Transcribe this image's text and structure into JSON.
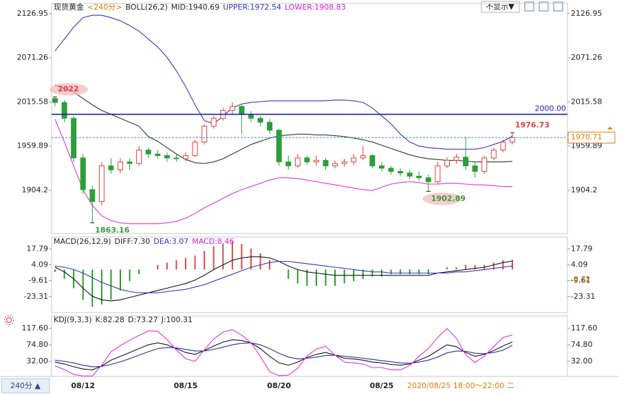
{
  "chart_data": [
    {
      "type": "candlestick",
      "legend": [
        {
          "text": "现货黄金",
          "color": "#222222"
        },
        {
          "text": "<240分>",
          "color": "#e07b00"
        },
        {
          "text": "BOLL(26,2)",
          "color": "#222222"
        },
        {
          "text": "MID:1940.69",
          "color": "#222222"
        },
        {
          "text": "UPPER:1972.54",
          "color": "#3535c0"
        },
        {
          "text": "LOWER:1908.83",
          "color": "#d020d0"
        }
      ],
      "categories": [
        null,
        null,
        null,
        "08/12",
        null,
        null,
        null,
        null,
        null,
        null,
        null,
        null,
        null,
        null,
        "08/15",
        null,
        null,
        null,
        null,
        null,
        null,
        null,
        null,
        null,
        "08/20",
        null,
        null,
        null,
        null,
        null,
        null,
        null,
        null,
        null,
        null,
        "08/25",
        null,
        null,
        null,
        null,
        null,
        null,
        null,
        null,
        null,
        null,
        null,
        null,
        null,
        null
      ],
      "candles": [
        [
          2020,
          2022,
          2010,
          2015
        ],
        [
          2015,
          2018,
          1990,
          1995
        ],
        [
          1995,
          1998,
          1940,
          1945
        ],
        [
          1945,
          1950,
          1900,
          1905
        ],
        [
          1905,
          1910,
          1863.16,
          1890
        ],
        [
          1890,
          1940,
          1885,
          1935
        ],
        [
          1935,
          1945,
          1925,
          1930
        ],
        [
          1930,
          1945,
          1926,
          1940
        ],
        [
          1940,
          1944,
          1930,
          1938
        ],
        [
          1938,
          1960,
          1935,
          1955
        ],
        [
          1955,
          1958,
          1945,
          1950
        ],
        [
          1950,
          1955,
          1944,
          1948
        ],
        [
          1948,
          1952,
          1940,
          1945
        ],
        [
          1945,
          1950,
          1940,
          1944
        ],
        [
          1944,
          1952,
          1941,
          1948
        ],
        [
          1948,
          1968,
          1946,
          1965
        ],
        [
          1965,
          1988,
          1962,
          1985
        ],
        [
          1985,
          1998,
          1982,
          1995
        ],
        [
          1995,
          2008,
          1992,
          2005
        ],
        [
          2005,
          2015.59,
          2000,
          2010
        ],
        [
          2010,
          2012,
          1975,
          2000
        ],
        [
          2000,
          2004,
          1990,
          1995
        ],
        [
          1995,
          1998,
          1985,
          1990
        ],
        [
          1990,
          1994,
          1975,
          1980
        ],
        [
          1980,
          1982,
          1935,
          1940
        ],
        [
          1940,
          1948,
          1930,
          1935
        ],
        [
          1935,
          1950,
          1932,
          1945
        ],
        [
          1945,
          1948,
          1936,
          1940
        ],
        [
          1940,
          1948,
          1935,
          1942
        ],
        [
          1942,
          1945,
          1930,
          1935
        ],
        [
          1935,
          1942,
          1932,
          1938
        ],
        [
          1938,
          1944,
          1934,
          1940
        ],
        [
          1940,
          1950,
          1936,
          1945
        ],
        [
          1945,
          1960,
          1942,
          1948
        ],
        [
          1948,
          1950,
          1932,
          1935
        ],
        [
          1935,
          1940,
          1928,
          1932
        ],
        [
          1932,
          1935,
          1924,
          1928
        ],
        [
          1928,
          1932,
          1922,
          1926
        ],
        [
          1926,
          1930,
          1918,
          1922
        ],
        [
          1922,
          1928,
          1916,
          1920
        ],
        [
          1920,
          1924,
          1902.89,
          1915
        ],
        [
          1915,
          1940,
          1912,
          1935
        ],
        [
          1935,
          1946,
          1932,
          1942
        ],
        [
          1942,
          1950,
          1938,
          1946
        ],
        [
          1946,
          1972,
          1930,
          1935
        ],
        [
          1935,
          1940,
          1920,
          1928
        ],
        [
          1928,
          1948,
          1925,
          1945
        ],
        [
          1945,
          1958,
          1942,
          1955
        ],
        [
          1955,
          1968,
          1952,
          1965
        ],
        [
          1965,
          1976.73,
          1962,
          1970.71
        ]
      ],
      "up_color": "#e0403a",
      "down_color": "#2e9e3a",
      "series": [
        {
          "color": "#3535c0",
          "values": [
            2080,
            2095,
            2110,
            2122,
            2125,
            2125,
            2122,
            2118,
            2112,
            2105,
            2095,
            2085,
            2072,
            2055,
            2035,
            2012,
            1992,
            1988,
            1998,
            2008,
            2013,
            2015,
            2016,
            2017,
            2017,
            2017,
            2017,
            2017,
            2017,
            2017,
            2018,
            2018,
            2017,
            2015,
            2008,
            1998,
            1988,
            1975,
            1965,
            1960,
            1958,
            1957,
            1956,
            1956,
            1956,
            1956,
            1958,
            1962,
            1966,
            1972.54
          ]
        },
        {
          "color": "#333333",
          "values": [
            2037,
            2033,
            2028,
            2020,
            2012,
            2005,
            2000,
            1995,
            1990,
            1985,
            1972,
            1966,
            1958,
            1950,
            1943,
            1939,
            1938,
            1940,
            1944,
            1950,
            1956,
            1962,
            1966,
            1970,
            1973,
            1974,
            1975,
            1975,
            1974,
            1974,
            1973,
            1972,
            1970,
            1968,
            1965,
            1961,
            1957,
            1953,
            1949,
            1946,
            1944,
            1943,
            1942,
            1942,
            1941,
            1940,
            1940,
            1940,
            1940,
            1940.69
          ]
        },
        {
          "color": "#e030e0",
          "values": [
            1994,
            1965,
            1935,
            1905,
            1885,
            1872,
            1866,
            1863,
            1862,
            1862,
            1862,
            1862,
            1863,
            1865,
            1869,
            1875,
            1882,
            1888,
            1894,
            1900,
            1905,
            1909,
            1913,
            1917,
            1920,
            1920,
            1919,
            1917,
            1915,
            1913,
            1911,
            1909,
            1907,
            1905,
            1904,
            1908,
            1912,
            1914,
            1915,
            1914,
            1912,
            1912,
            1913,
            1913,
            1912,
            1911,
            1911,
            1910,
            1909,
            1908.83
          ]
        }
      ],
      "hline": {
        "value": 2000,
        "label": "2000.00",
        "color": "#1a1aa8"
      },
      "ylim": [
        1849.6,
        2139.9
      ],
      "yticks": [
        1904.2,
        1959.89,
        2015.58,
        2071.26,
        2126.95
      ]
    },
    {
      "type": "macd",
      "legend": [
        {
          "text": "MACD(26,12,9)",
          "color": "#222222"
        },
        {
          "text": "DIFF:7.30",
          "color": "#222222"
        },
        {
          "text": "DEA:3.07",
          "color": "#3535c0"
        },
        {
          "text": "MACD:8.46",
          "color": "#d020d0"
        }
      ],
      "histogram": [
        -2,
        -8,
        -16,
        -26,
        -32,
        -30,
        -26,
        -18,
        -10,
        -4,
        0,
        4,
        6,
        8,
        10,
        12,
        16,
        20,
        22,
        24,
        22,
        18,
        14,
        8,
        0,
        -8,
        -12,
        -14,
        -14,
        -14,
        -14,
        -12,
        -10,
        -8,
        -6,
        -6,
        -4,
        -4,
        -4,
        -4,
        -4,
        0,
        2,
        2,
        4,
        4,
        4,
        6,
        8,
        8.46
      ],
      "up_color": "#e04848",
      "down_color": "#2a9a2a",
      "series": [
        {
          "color": "#111111",
          "values": [
            2,
            -2,
            -8,
            -16,
            -23,
            -26,
            -27,
            -26,
            -24,
            -22,
            -20,
            -18,
            -16,
            -14,
            -12,
            -9,
            -5,
            0,
            4,
            8,
            10,
            11,
            11,
            10,
            7,
            3,
            0,
            -2,
            -3,
            -4,
            -5,
            -5,
            -5,
            -5,
            -5,
            -5,
            -5,
            -5,
            -5,
            -5,
            -5,
            -3,
            -2,
            -1,
            0,
            1,
            2,
            4,
            6,
            7.3
          ]
        },
        {
          "color": "#3535c0",
          "values": [
            3,
            2,
            0,
            -3,
            -7,
            -11,
            -14,
            -17,
            -19,
            -20,
            -20,
            -20,
            -19,
            -18,
            -17,
            -15,
            -13,
            -10,
            -7,
            -4,
            -1,
            2,
            4,
            6,
            7,
            7,
            6,
            5,
            4,
            3,
            2,
            1,
            0,
            -1,
            -2,
            -2,
            -3,
            -3,
            -3,
            -3,
            -3,
            -3,
            -3,
            -2,
            -2,
            -1,
            0,
            1,
            2,
            3.07
          ]
        }
      ],
      "marker": {
        "value": -8.72,
        "color": "#e07b00"
      },
      "ylim": [
        -37,
        28
      ],
      "yticks": [
        -23.31,
        -9.61,
        4.09,
        17.79
      ]
    },
    {
      "type": "line",
      "legend": [
        {
          "text": "KDJ(9,3,3)",
          "color": "#222222"
        },
        {
          "text": "K:82.28",
          "color": "#222222"
        },
        {
          "text": "D:73.27",
          "color": "#222222"
        },
        {
          "text": "J:100.31",
          "color": "#222222"
        }
      ],
      "series": [
        {
          "color": "#111111",
          "values": [
            30,
            25,
            18,
            12,
            10,
            20,
            35,
            45,
            55,
            65,
            75,
            80,
            75,
            65,
            55,
            50,
            60,
            72,
            82,
            88,
            86,
            80,
            65,
            45,
            28,
            22,
            30,
            42,
            50,
            55,
            48,
            40,
            38,
            35,
            30,
            28,
            24,
            22,
            25,
            35,
            45,
            60,
            75,
            70,
            55,
            45,
            50,
            60,
            72,
            82.28
          ]
        },
        {
          "color": "#2b2b9a",
          "values": [
            35,
            32,
            28,
            22,
            18,
            19,
            24,
            31,
            39,
            48,
            57,
            65,
            68,
            67,
            63,
            59,
            59,
            63,
            69,
            75,
            79,
            80,
            75,
            65,
            53,
            43,
            38,
            40,
            43,
            47,
            48,
            45,
            43,
            40,
            37,
            34,
            31,
            28,
            27,
            30,
            35,
            43,
            54,
            59,
            58,
            53,
            52,
            55,
            61,
            73.27
          ]
        },
        {
          "color": "#e030e0",
          "values": [
            20,
            11,
            -2,
            -6,
            -6,
            22,
            57,
            73,
            87,
            99,
            111,
            110,
            89,
            61,
            39,
            32,
            62,
            90,
            108,
            114,
            100,
            80,
            45,
            5,
            -5,
            -4,
            14,
            46,
            64,
            71,
            48,
            30,
            28,
            25,
            16,
            16,
            10,
            10,
            21,
            45,
            65,
            94,
            117,
            92,
            49,
            29,
            46,
            70,
            94,
            100.31
          ]
        }
      ],
      "ylim": [
        -7.2,
        149.7
      ],
      "yticks": [
        {
          "value": 32,
          "label": "32.00"
        },
        {
          "value": 74.8,
          "label": "74.80"
        },
        {
          "value": 117.6,
          "label": "117.60"
        }
      ]
    }
  ],
  "toolbar": {
    "button": "不显示▼"
  },
  "status_bar": {
    "period": "240分 ▲",
    "cursor_time": "2020/08/25 18:00～22:00 二"
  }
}
